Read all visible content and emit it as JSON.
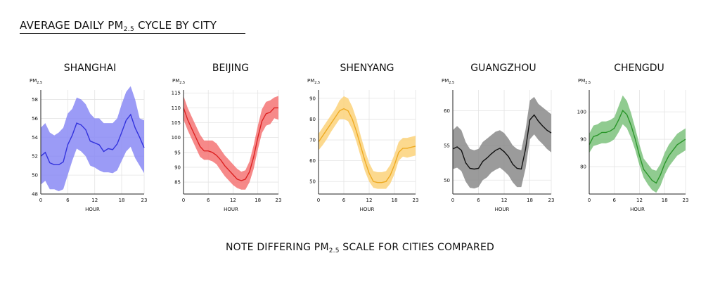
{
  "title": {
    "main": "AVERAGE DAILY PM",
    "sub": "2.5",
    "rest": " CYCLE BY CITY"
  },
  "footnote": {
    "pre": "NOTE DIFFERING PM",
    "sub": "2.5",
    "post": " SCALE FOR CITIES COMPARED"
  },
  "chart_data": [
    {
      "type": "line",
      "title": "SHANGHAI",
      "xlabel": "HOUR",
      "ylabel_main": "PM",
      "ylabel_sub": "2.5",
      "color": "#3333dd",
      "band_color": "#8a8af5",
      "xlim": [
        0,
        23
      ],
      "ylim": [
        48,
        59
      ],
      "xticks": [
        0,
        6,
        12,
        18,
        23
      ],
      "yticks": [
        48,
        50,
        52,
        54,
        56,
        58
      ],
      "x": [
        0,
        1,
        2,
        3,
        4,
        5,
        6,
        7,
        8,
        9,
        10,
        11,
        12,
        13,
        14,
        15,
        16,
        17,
        18,
        19,
        20,
        21,
        22,
        23
      ],
      "mean": [
        52.0,
        52.4,
        51.3,
        51.1,
        51.1,
        51.4,
        53.2,
        54.2,
        55.5,
        55.3,
        54.8,
        53.6,
        53.4,
        53.2,
        52.5,
        52.8,
        52.7,
        53.3,
        54.5,
        55.8,
        56.4,
        55.0,
        54.0,
        52.9
      ],
      "upper": [
        55.0,
        55.5,
        54.5,
        54.2,
        54.5,
        55.0,
        56.5,
        57.0,
        58.2,
        58.0,
        57.5,
        56.5,
        56.0,
        56.0,
        55.5,
        55.5,
        55.5,
        56.0,
        57.5,
        58.8,
        59.4,
        58.0,
        56.0,
        55.8
      ],
      "lower": [
        49.0,
        49.4,
        48.5,
        48.5,
        48.3,
        48.5,
        50.0,
        51.5,
        52.8,
        52.5,
        52.0,
        51.0,
        50.8,
        50.5,
        50.3,
        50.3,
        50.2,
        50.5,
        51.5,
        52.5,
        53.0,
        51.8,
        51.0,
        50.2
      ]
    },
    {
      "type": "line",
      "title": "BEIJING",
      "xlabel": "HOUR",
      "ylabel_main": "PM",
      "ylabel_sub": "2.5",
      "color": "#dd2222",
      "band_color": "#f47474",
      "xlim": [
        0,
        23
      ],
      "ylim": [
        81,
        116
      ],
      "xticks": [
        0,
        6,
        12,
        18,
        23
      ],
      "yticks": [
        85,
        90,
        95,
        100,
        105,
        110,
        115
      ],
      "x": [
        0,
        1,
        2,
        3,
        4,
        5,
        6,
        7,
        8,
        9,
        10,
        11,
        12,
        13,
        14,
        15,
        16,
        17,
        18,
        19,
        20,
        21,
        22,
        23
      ],
      "mean": [
        110,
        106,
        103,
        100,
        97,
        95.5,
        95.5,
        95,
        94,
        92.5,
        90.5,
        89,
        87.5,
        86,
        85.5,
        86,
        88.5,
        93.5,
        100,
        105.5,
        108,
        108.5,
        110,
        110
      ],
      "upper": [
        114,
        110,
        107,
        104,
        101,
        99,
        99,
        99,
        98,
        96,
        94,
        92.5,
        91,
        89.5,
        88.5,
        89,
        92,
        97.5,
        104,
        109.5,
        112,
        112.5,
        113.5,
        114
      ],
      "lower": [
        106,
        102.5,
        99.5,
        96.5,
        93.5,
        92.5,
        92.5,
        92,
        91,
        89,
        87,
        85.5,
        84,
        83,
        82.5,
        82.5,
        85,
        89.5,
        96,
        101.5,
        104,
        104.5,
        106.5,
        106
      ]
    },
    {
      "type": "line",
      "title": "SHENYANG",
      "xlabel": "HOUR",
      "ylabel_main": "PM",
      "ylabel_sub": "2.5",
      "color": "#eeaa22",
      "band_color": "#fbd27a",
      "xlim": [
        0,
        23
      ],
      "ylim": [
        44,
        94
      ],
      "xticks": [
        0,
        6,
        12,
        18,
        23
      ],
      "yticks": [
        50,
        60,
        70,
        80,
        90
      ],
      "x": [
        0,
        1,
        2,
        3,
        4,
        5,
        6,
        7,
        8,
        9,
        10,
        11,
        12,
        13,
        14,
        15,
        16,
        17,
        18,
        19,
        20,
        21,
        22,
        23
      ],
      "mean": [
        69,
        72,
        75,
        78,
        81,
        84,
        85,
        84,
        80,
        74,
        67,
        60,
        54,
        50,
        49.5,
        49.5,
        50,
        53,
        58,
        64,
        66,
        66,
        66.5,
        67
      ],
      "upper": [
        73,
        76,
        79,
        82,
        85,
        89,
        91,
        90,
        86,
        80,
        72,
        65,
        59,
        55,
        54.5,
        54.5,
        55,
        58,
        63,
        69,
        71,
        71,
        71.5,
        72
      ],
      "lower": [
        65,
        67.5,
        70.5,
        74,
        77,
        80,
        80,
        79,
        75,
        69,
        62,
        55,
        50,
        47,
        46.5,
        46.5,
        46.5,
        49,
        53.5,
        60,
        62,
        61.5,
        62,
        62.5
      ]
    },
    {
      "type": "line",
      "title": "GUANGZHOU",
      "xlabel": "HOUR",
      "ylabel_main": "PM",
      "ylabel_sub": "2.5",
      "color": "#111111",
      "band_color": "#8a8a8a",
      "xlim": [
        0,
        23
      ],
      "ylim": [
        48,
        63
      ],
      "xticks": [
        0,
        6,
        12,
        18,
        23
      ],
      "yticks": [
        50,
        55,
        60
      ],
      "x": [
        0,
        1,
        2,
        3,
        4,
        5,
        6,
        7,
        8,
        9,
        10,
        11,
        12,
        13,
        14,
        15,
        16,
        17,
        18,
        19,
        20,
        21,
        22,
        23
      ],
      "mean": [
        54.5,
        54.8,
        54.3,
        52.5,
        51.7,
        51.6,
        51.7,
        52.7,
        53.2,
        53.8,
        54.3,
        54.6,
        54.1,
        53.4,
        52.3,
        51.7,
        51.6,
        54.5,
        58.7,
        59.4,
        58.5,
        57.8,
        57.2,
        56.8
      ],
      "upper": [
        57.2,
        57.8,
        57.2,
        55.5,
        54.5,
        54.3,
        54.5,
        55.5,
        56.0,
        56.5,
        57.0,
        57.2,
        56.8,
        56.0,
        55.0,
        54.5,
        54.3,
        57.3,
        61.5,
        62.0,
        61.0,
        60.5,
        60.0,
        59.5
      ],
      "lower": [
        51.6,
        51.8,
        51.3,
        49.8,
        48.9,
        48.8,
        49.0,
        50.0,
        50.4,
        51.1,
        51.5,
        51.8,
        51.3,
        50.7,
        49.7,
        49.0,
        49.0,
        51.7,
        55.9,
        56.6,
        55.8,
        55.2,
        54.5,
        54.0
      ]
    },
    {
      "type": "line",
      "title": "CHENGDU",
      "xlabel": "HOUR",
      "ylabel_main": "PM",
      "ylabel_sub": "2.5",
      "color": "#2a962a",
      "band_color": "#7cc27c",
      "xlim": [
        0,
        23
      ],
      "ylim": [
        70,
        108
      ],
      "xticks": [
        0,
        6,
        12,
        18,
        23
      ],
      "yticks": [
        80,
        90,
        100
      ],
      "x": [
        0,
        1,
        2,
        3,
        4,
        5,
        6,
        7,
        8,
        9,
        10,
        11,
        12,
        13,
        14,
        15,
        16,
        17,
        18,
        19,
        20,
        21,
        22,
        23
      ],
      "mean": [
        88,
        91,
        91.5,
        92.5,
        92.5,
        93,
        94,
        97,
        100.5,
        99,
        95,
        90,
        84,
        79,
        77,
        75,
        74,
        77,
        81,
        84,
        86,
        88,
        89,
        90
      ],
      "upper": [
        92,
        95,
        95.5,
        96.5,
        96.5,
        97,
        98,
        102,
        106,
        104,
        99.5,
        94,
        88,
        83,
        81,
        79,
        78.5,
        81,
        85,
        88,
        90,
        92,
        93,
        94
      ],
      "lower": [
        85,
        87.5,
        88,
        88.5,
        88.5,
        89,
        90,
        92.5,
        95.5,
        94,
        90.5,
        86,
        80.5,
        76,
        73.5,
        71.5,
        70.5,
        73,
        77,
        80,
        82,
        84,
        85,
        86
      ]
    }
  ]
}
